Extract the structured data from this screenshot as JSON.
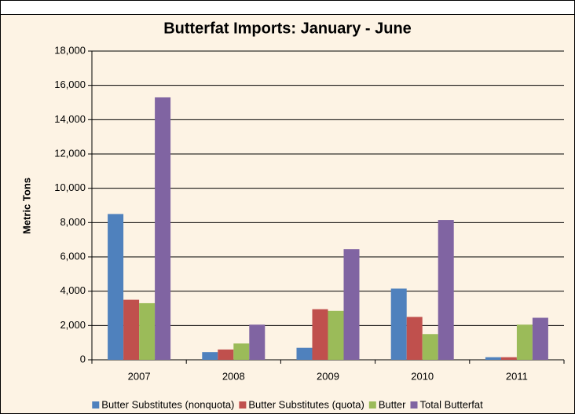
{
  "chart_data": {
    "type": "bar",
    "title": "Butterfat Imports: January - June",
    "y_label": "Metric Tons",
    "categories": [
      "2007",
      "2008",
      "2009",
      "2010",
      "2011"
    ],
    "series": [
      {
        "name": "Butter Substitutes (nonquota)",
        "color": "#4f81bd",
        "values": [
          8500,
          450,
          700,
          4150,
          150
        ]
      },
      {
        "name": "Butter Substitutes (quota)",
        "color": "#c0504d",
        "values": [
          3500,
          600,
          2950,
          2500,
          150
        ]
      },
      {
        "name": "Butter",
        "color": "#9bbb59",
        "values": [
          3300,
          950,
          2850,
          1500,
          2050
        ]
      },
      {
        "name": "Total Butterfat",
        "color": "#8064a2",
        "values": [
          15300,
          2050,
          6450,
          8150,
          2450
        ]
      }
    ],
    "ylim": [
      0,
      18000
    ],
    "yticks": [
      0,
      {
        "value": 2000,
        "label": "2,000"
      },
      {
        "value": 4000,
        "label": "4,000"
      },
      {
        "value": 6000,
        "label": "6,000"
      },
      {
        "value": 8000,
        "label": "8,000"
      },
      {
        "value": 10000,
        "label": "10,000"
      },
      {
        "value": 12000,
        "label": "12,000"
      },
      {
        "value": 14000,
        "label": "14,000"
      },
      {
        "value": 16000,
        "label": "16,000"
      },
      {
        "value": 18000,
        "label": "18,000"
      }
    ],
    "grid": true,
    "legend": "bottom"
  }
}
